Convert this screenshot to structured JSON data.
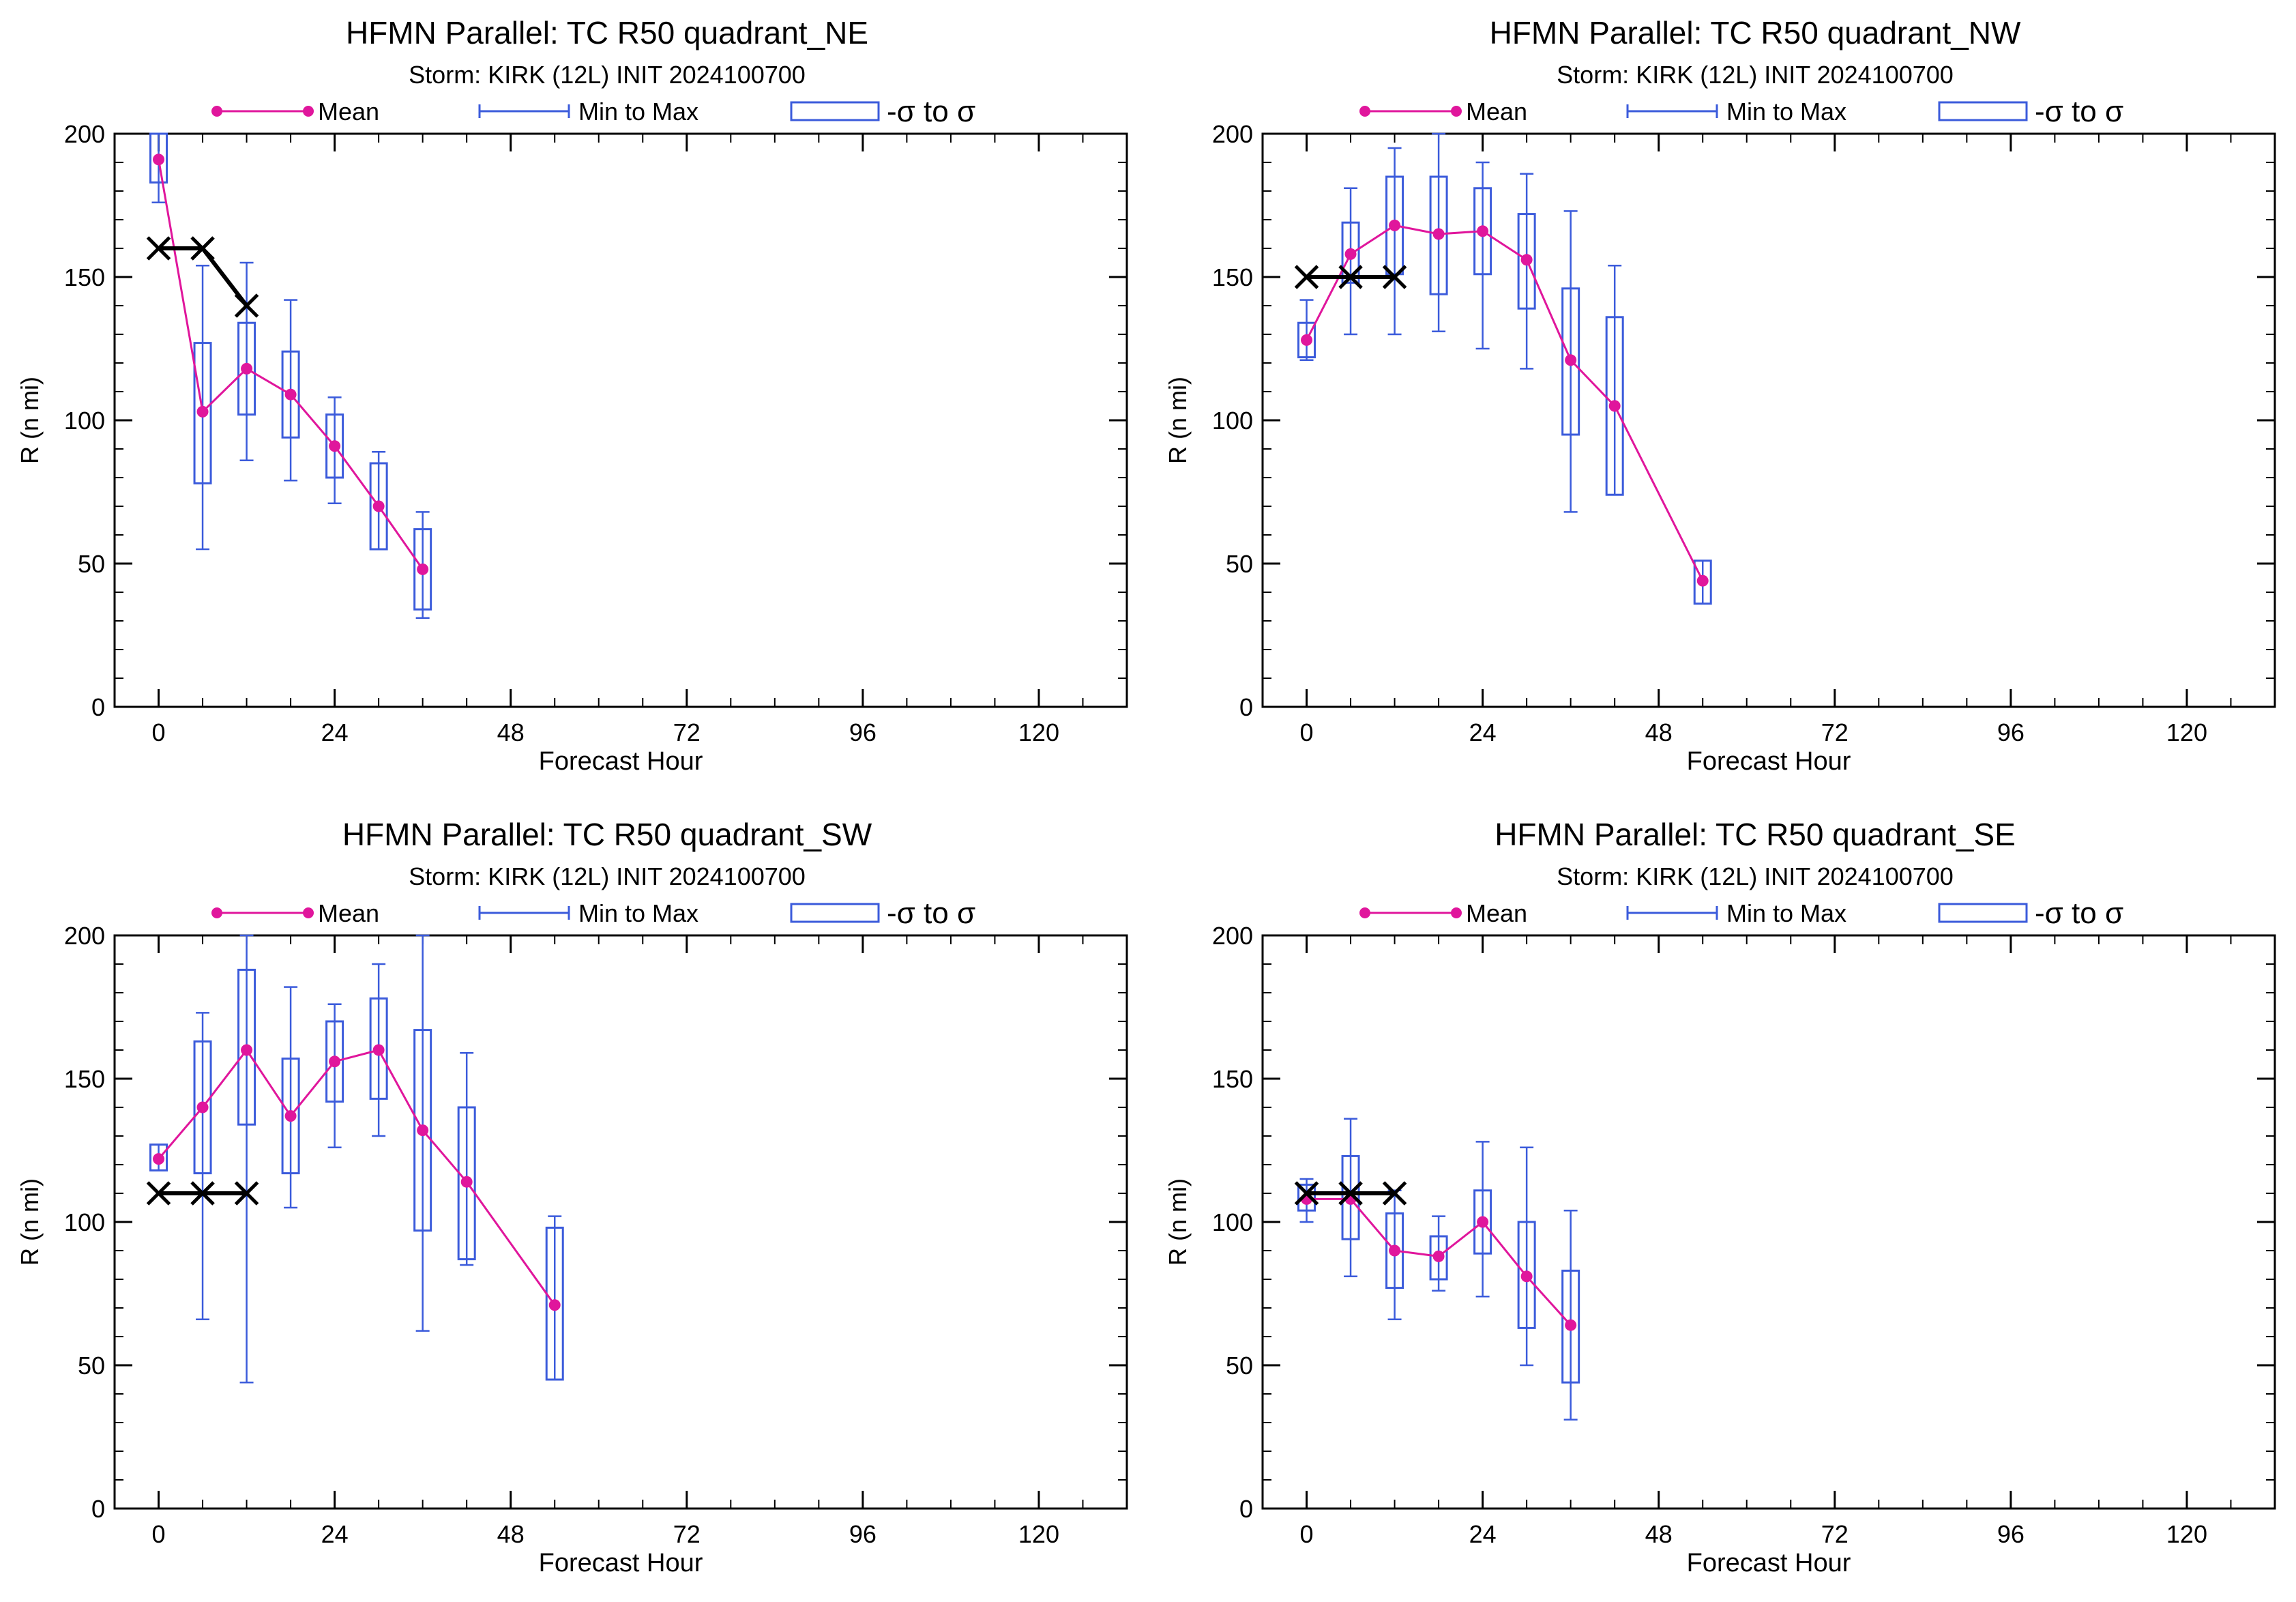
{
  "colors": {
    "mean": "#e0169c",
    "range": "#3b5bdb",
    "observed": "#000000",
    "axis": "#000000"
  },
  "chart_data": [
    {
      "type": "box",
      "title": "HFMN Parallel: TC  R50 quadrant_NE",
      "subtitle": "Storm: KIRK (12L) INIT 2024100700",
      "xlabel": "Forecast Hour",
      "ylabel": "R (n mi)",
      "xlim": [
        -6,
        132
      ],
      "ylim": [
        0,
        200
      ],
      "xticks": [
        0,
        24,
        48,
        72,
        96,
        120
      ],
      "yticks": [
        0,
        50,
        100,
        150,
        200
      ],
      "legend": {
        "mean": "Mean",
        "range": "Min to Max",
        "sigma": "-σ to σ"
      },
      "boxes": [
        {
          "x": 0,
          "min": 176,
          "max": 200,
          "q_low": 183,
          "q_high": 200,
          "mean": 191
        },
        {
          "x": 6,
          "min": 55,
          "max": 154,
          "q_low": 78,
          "q_high": 127,
          "mean": 103
        },
        {
          "x": 12,
          "min": 86,
          "max": 155,
          "q_low": 102,
          "q_high": 134,
          "mean": 118
        },
        {
          "x": 18,
          "min": 79,
          "max": 142,
          "q_low": 94,
          "q_high": 124,
          "mean": 109
        },
        {
          "x": 24,
          "min": 71,
          "max": 108,
          "q_low": 80,
          "q_high": 102,
          "mean": 91
        },
        {
          "x": 30,
          "min": 55,
          "max": 89,
          "q_low": 55,
          "q_high": 85,
          "mean": 70
        },
        {
          "x": 36,
          "min": 31,
          "max": 68,
          "q_low": 34,
          "q_high": 62,
          "mean": 48
        }
      ],
      "observed": [
        {
          "x": 0,
          "y": 160
        },
        {
          "x": 6,
          "y": 160
        },
        {
          "x": 12,
          "y": 140
        }
      ]
    },
    {
      "type": "box",
      "title": "HFMN Parallel: TC  R50 quadrant_NW",
      "subtitle": "Storm: KIRK (12L) INIT 2024100700",
      "xlabel": "Forecast Hour",
      "ylabel": "R (n mi)",
      "xlim": [
        -6,
        132
      ],
      "ylim": [
        0,
        200
      ],
      "xticks": [
        0,
        24,
        48,
        72,
        96,
        120
      ],
      "yticks": [
        0,
        50,
        100,
        150,
        200
      ],
      "legend": {
        "mean": "Mean",
        "range": "Min to Max",
        "sigma": "-σ to σ"
      },
      "boxes": [
        {
          "x": 0,
          "min": 121,
          "max": 142,
          "q_low": 122,
          "q_high": 134,
          "mean": 128
        },
        {
          "x": 6,
          "min": 130,
          "max": 181,
          "q_low": 148,
          "q_high": 169,
          "mean": 158
        },
        {
          "x": 12,
          "min": 130,
          "max": 195,
          "q_low": 151,
          "q_high": 185,
          "mean": 168
        },
        {
          "x": 18,
          "min": 131,
          "max": 200,
          "q_low": 144,
          "q_high": 185,
          "mean": 165
        },
        {
          "x": 24,
          "min": 125,
          "max": 190,
          "q_low": 151,
          "q_high": 181,
          "mean": 166
        },
        {
          "x": 30,
          "min": 118,
          "max": 186,
          "q_low": 139,
          "q_high": 172,
          "mean": 156
        },
        {
          "x": 36,
          "min": 68,
          "max": 173,
          "q_low": 95,
          "q_high": 146,
          "mean": 121
        },
        {
          "x": 42,
          "min": 74,
          "max": 154,
          "q_low": 74,
          "q_high": 136,
          "mean": 105
        },
        {
          "x": 54,
          "min": 36,
          "max": 51,
          "q_low": 36,
          "q_high": 51,
          "mean": 44
        }
      ],
      "observed": [
        {
          "x": 0,
          "y": 150
        },
        {
          "x": 6,
          "y": 150
        },
        {
          "x": 12,
          "y": 150
        }
      ]
    },
    {
      "type": "box",
      "title": "HFMN Parallel: TC  R50 quadrant_SW",
      "subtitle": "Storm: KIRK (12L) INIT 2024100700",
      "xlabel": "Forecast Hour",
      "ylabel": "R (n mi)",
      "xlim": [
        -6,
        132
      ],
      "ylim": [
        0,
        200
      ],
      "xticks": [
        0,
        24,
        48,
        72,
        96,
        120
      ],
      "yticks": [
        0,
        50,
        100,
        150,
        200
      ],
      "legend": {
        "mean": "Mean",
        "range": "Min to Max",
        "sigma": "-σ to σ"
      },
      "boxes": [
        {
          "x": 0,
          "min": 118,
          "max": 127,
          "q_low": 118,
          "q_high": 127,
          "mean": 122
        },
        {
          "x": 6,
          "min": 66,
          "max": 173,
          "q_low": 117,
          "q_high": 163,
          "mean": 140
        },
        {
          "x": 12,
          "min": 44,
          "max": 200,
          "q_low": 134,
          "q_high": 188,
          "mean": 160
        },
        {
          "x": 18,
          "min": 105,
          "max": 182,
          "q_low": 117,
          "q_high": 157,
          "mean": 137
        },
        {
          "x": 24,
          "min": 126,
          "max": 176,
          "q_low": 142,
          "q_high": 170,
          "mean": 156
        },
        {
          "x": 30,
          "min": 130,
          "max": 190,
          "q_low": 143,
          "q_high": 178,
          "mean": 160
        },
        {
          "x": 36,
          "min": 62,
          "max": 200,
          "q_low": 97,
          "q_high": 167,
          "mean": 132
        },
        {
          "x": 42,
          "min": 85,
          "max": 159,
          "q_low": 87,
          "q_high": 140,
          "mean": 114
        },
        {
          "x": 54,
          "min": 45,
          "max": 102,
          "q_low": 45,
          "q_high": 98,
          "mean": 71
        }
      ],
      "observed": [
        {
          "x": 0,
          "y": 110
        },
        {
          "x": 6,
          "y": 110
        },
        {
          "x": 12,
          "y": 110
        }
      ]
    },
    {
      "type": "box",
      "title": "HFMN Parallel: TC  R50 quadrant_SE",
      "subtitle": "Storm: KIRK (12L) INIT 2024100700",
      "xlabel": "Forecast Hour",
      "ylabel": "R (n mi)",
      "xlim": [
        -6,
        132
      ],
      "ylim": [
        0,
        200
      ],
      "xticks": [
        0,
        24,
        48,
        72,
        96,
        120
      ],
      "yticks": [
        0,
        50,
        100,
        150,
        200
      ],
      "legend": {
        "mean": "Mean",
        "range": "Min to Max",
        "sigma": "-σ to σ"
      },
      "boxes": [
        {
          "x": 0,
          "min": 100,
          "max": 115,
          "q_low": 104,
          "q_high": 113,
          "mean": 108
        },
        {
          "x": 6,
          "min": 81,
          "max": 136,
          "q_low": 94,
          "q_high": 123,
          "mean": 108
        },
        {
          "x": 12,
          "min": 66,
          "max": 111,
          "q_low": 77,
          "q_high": 103,
          "mean": 90
        },
        {
          "x": 18,
          "min": 76,
          "max": 102,
          "q_low": 80,
          "q_high": 95,
          "mean": 88
        },
        {
          "x": 24,
          "min": 74,
          "max": 128,
          "q_low": 89,
          "q_high": 111,
          "mean": 100
        },
        {
          "x": 30,
          "min": 50,
          "max": 126,
          "q_low": 63,
          "q_high": 100,
          "mean": 81
        },
        {
          "x": 36,
          "min": 31,
          "max": 104,
          "q_low": 44,
          "q_high": 83,
          "mean": 64
        }
      ],
      "observed": [
        {
          "x": 0,
          "y": 110
        },
        {
          "x": 6,
          "y": 110
        },
        {
          "x": 12,
          "y": 110
        }
      ]
    }
  ]
}
